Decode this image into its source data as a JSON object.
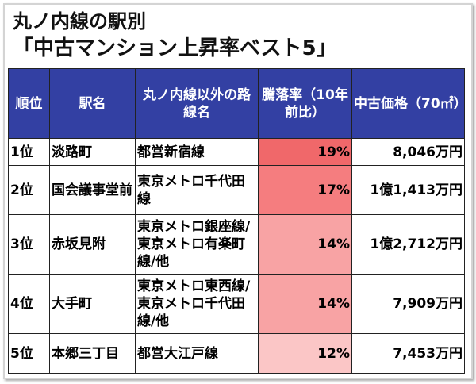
{
  "title": {
    "line1": "丸ノ内線の駅別",
    "line2": "「中古マンション上昇率ベスト5」"
  },
  "table": {
    "headers": {
      "rank": "順位",
      "station": "駅名",
      "other_lines": "丸ノ内線以外の路線名",
      "rate": "騰落率（10年前比）",
      "price": "中古価格（70㎡）"
    },
    "rows": [
      {
        "rank": "1位",
        "station": "淡路町",
        "other_lines": "都営新宿線",
        "rate": "19%",
        "price": "8,046万円",
        "rate_color": "#f0686a"
      },
      {
        "rank": "2位",
        "station": "国会議事堂前",
        "other_lines": "東京メトロ千代田線",
        "rate": "17%",
        "price": "1億1,413万円",
        "rate_color": "#f57d7f"
      },
      {
        "rank": "3位",
        "station": "赤坂見附",
        "other_lines": "東京メトロ銀座線/東京メトロ有楽町線/他",
        "rate": "14%",
        "price": "1億2,712万円",
        "rate_color": "#f8a3a4"
      },
      {
        "rank": "4位",
        "station": "大手町",
        "other_lines": "東京メトロ東西線/東京メトロ千代田線/他",
        "rate": "14%",
        "price": "7,909万円",
        "rate_color": "#f8a3a4"
      },
      {
        "rank": "5位",
        "station": "本郷三丁目",
        "other_lines": "都営大江戸線",
        "rate": "12%",
        "price": "7,453万円",
        "rate_color": "#fbc6c6"
      }
    ]
  },
  "colors": {
    "header_bg": "#3340a3",
    "header_text": "#ffffff"
  }
}
